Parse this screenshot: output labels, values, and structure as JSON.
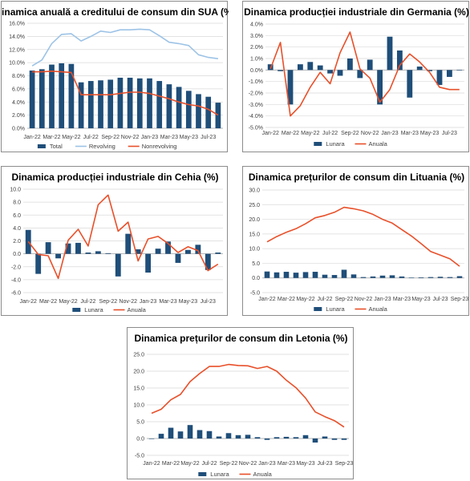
{
  "colors": {
    "bar": "#1f4e79",
    "line_red": "#e8502a",
    "line_blue": "#9dc3e6",
    "grid": "#d9d9d9",
    "axis": "#a6a6a6"
  },
  "chart_data": [
    {
      "id": "sua",
      "type": "bar",
      "title": "Dinamica anuală a creditului de consum din SUA (%)",
      "x_tick_labels": [
        "Jan-22",
        "Mar-22",
        "May-22",
        "Jul-22",
        "Sep-22",
        "Nov-22",
        "Jan-23",
        "Mar-23",
        "May-23",
        "Jul-23"
      ],
      "y_tick_labels": [
        "0.0%",
        "2.0%",
        "4.0%",
        "6.0%",
        "8.0%",
        "10.0%",
        "12.0%",
        "14.0%",
        "16.0%"
      ],
      "ylim": [
        0,
        16
      ],
      "grid": true,
      "legend_position": "bottom",
      "categories": [
        "Jan-22",
        "Feb-22",
        "Mar-22",
        "Apr-22",
        "May-22",
        "Jun-22",
        "Jul-22",
        "Aug-22",
        "Sep-22",
        "Oct-22",
        "Nov-22",
        "Dec-22",
        "Jan-23",
        "Feb-23",
        "Mar-23",
        "Apr-23",
        "May-23",
        "Jun-23",
        "Jul-23",
        "Aug-23"
      ],
      "series": [
        {
          "name": "Total",
          "kind": "bar",
          "values": [
            8.8,
            9.0,
            9.7,
            9.9,
            9.8,
            7.0,
            7.2,
            7.3,
            7.4,
            7.7,
            7.7,
            7.6,
            7.6,
            7.2,
            6.7,
            6.3,
            5.7,
            5.2,
            4.8,
            3.9
          ]
        },
        {
          "name": "Revolving",
          "kind": "line",
          "values": [
            9.5,
            10.4,
            12.9,
            14.3,
            14.4,
            13.3,
            14.0,
            14.8,
            14.6,
            15.0,
            15.0,
            15.1,
            15.0,
            14.1,
            13.1,
            12.9,
            12.6,
            11.2,
            10.8,
            10.6
          ]
        },
        {
          "name": "Nonrevolving",
          "kind": "line",
          "values": [
            8.6,
            8.6,
            8.7,
            8.6,
            8.5,
            5.1,
            5.1,
            5.1,
            5.1,
            5.3,
            5.5,
            5.5,
            5.3,
            4.9,
            4.5,
            4.0,
            3.6,
            3.4,
            2.9,
            2.0
          ]
        }
      ]
    },
    {
      "id": "germania",
      "type": "bar",
      "title": "Dinamica producției industriale din Germania (%)",
      "x_tick_labels": [
        "Jan-22",
        "Mar-22",
        "May-22",
        "Jul-22",
        "Sep-22",
        "Nov-22",
        "Jan-23",
        "Mar-23",
        "May-23",
        "Jul-23"
      ],
      "y_tick_labels": [
        "-5.0%",
        "-4.0%",
        "-3.0%",
        "-2.0%",
        "-1.0%",
        "0.0%",
        "1.0%",
        "2.0%",
        "3.0%",
        "4.0%"
      ],
      "ylim": [
        -5,
        4
      ],
      "grid": true,
      "legend_position": "bottom",
      "categories": [
        "Jan-22",
        "Feb-22",
        "Mar-22",
        "Apr-22",
        "May-22",
        "Jun-22",
        "Jul-22",
        "Aug-22",
        "Sep-22",
        "Oct-22",
        "Nov-22",
        "Dec-22",
        "Jan-23",
        "Feb-23",
        "Mar-23",
        "Apr-23",
        "May-23",
        "Jun-23",
        "Jul-23",
        "Aug-23"
      ],
      "series": [
        {
          "name": "Lunara",
          "kind": "bar",
          "values": [
            0.5,
            -0.1,
            -3.0,
            0.5,
            0.7,
            0.4,
            -0.3,
            -0.5,
            1.0,
            -0.7,
            0.9,
            -3.0,
            2.9,
            1.7,
            -2.4,
            0.3,
            -0.1,
            -1.3,
            -0.6,
            0
          ]
        },
        {
          "name": "Anuala",
          "kind": "line",
          "values": [
            0.1,
            2.4,
            -4.0,
            -3.1,
            -1.5,
            -0.2,
            -1.2,
            1.5,
            3.3,
            0.1,
            -0.7,
            -2.8,
            -1.7,
            0.4,
            1.4,
            0.7,
            -0.2,
            -1.5,
            -1.7,
            -1.7
          ]
        }
      ]
    },
    {
      "id": "cehia",
      "type": "bar",
      "title": "Dinamica producției industriale din Cehia (%)",
      "x_tick_labels": [
        "Jan-22",
        "Mar-22",
        "May-22",
        "Jul-22",
        "Sep-22",
        "Nov-22",
        "Jan-23",
        "Mar-23",
        "May-23",
        "Jul-23"
      ],
      "y_tick_labels": [
        "-6.0",
        "-4.0",
        "-2.0",
        "0.0",
        "2.0",
        "4.0",
        "6.0",
        "8.0",
        "10.0"
      ],
      "ylim": [
        -6,
        10
      ],
      "grid": true,
      "legend_position": "bottom",
      "categories": [
        "Jan-22",
        "Feb-22",
        "Mar-22",
        "Apr-22",
        "May-22",
        "Jun-22",
        "Jul-22",
        "Aug-22",
        "Sep-22",
        "Oct-22",
        "Nov-22",
        "Dec-22",
        "Jan-23",
        "Feb-23",
        "Mar-23",
        "Apr-23",
        "May-23",
        "Jun-23",
        "Jul-23",
        "Aug-23"
      ],
      "series": [
        {
          "name": "Lunara",
          "kind": "bar",
          "values": [
            3.7,
            -3.1,
            1.8,
            -0.7,
            1.6,
            1.7,
            0.2,
            0.4,
            0.1,
            -3.5,
            3.1,
            0.7,
            -2.9,
            0.8,
            1.9,
            -1.4,
            0.6,
            1.4,
            -2.5,
            0.2
          ]
        },
        {
          "name": "Anuala",
          "kind": "line",
          "values": [
            1.9,
            -0.1,
            -0.3,
            -3.8,
            2.1,
            3.8,
            1.2,
            7.6,
            9.1,
            3.5,
            4.9,
            -1.1,
            2.3,
            2.7,
            1.6,
            0.2,
            1.1,
            0.5,
            -2.6,
            -1.6
          ]
        }
      ]
    },
    {
      "id": "lituania",
      "type": "bar",
      "title": "Dinamica prețurilor de consum din Lituania (%)",
      "x_tick_labels": [
        "Jan-22",
        "Mar-22",
        "May-22",
        "Jul-22",
        "Sep-22",
        "Nov-22",
        "Jan-23",
        "Mar-23",
        "May-23",
        "Jul-23",
        "Sep-23"
      ],
      "y_tick_labels": [
        "-5.0",
        "0.0",
        "5.0",
        "10.0",
        "15.0",
        "20.0",
        "25.0",
        "30.0"
      ],
      "ylim": [
        -5,
        30
      ],
      "grid": true,
      "legend_position": "bottom",
      "categories": [
        "Jan-22",
        "Feb-22",
        "Mar-22",
        "Apr-22",
        "May-22",
        "Jun-22",
        "Jul-22",
        "Aug-22",
        "Sep-22",
        "Oct-22",
        "Nov-22",
        "Dec-22",
        "Jan-23",
        "Feb-23",
        "Mar-23",
        "Apr-23",
        "May-23",
        "Jun-23",
        "Jul-23",
        "Aug-23",
        "Sep-23"
      ],
      "series": [
        {
          "name": "Lunara",
          "kind": "bar",
          "values": [
            2.2,
            1.9,
            2.1,
            1.8,
            2.0,
            2.1,
            1.1,
            1.0,
            2.8,
            1.2,
            0.3,
            0.5,
            0.8,
            0.9,
            0.5,
            0.1,
            0.2,
            0.3,
            0.4,
            0.3,
            0.6
          ]
        },
        {
          "name": "Anuala",
          "kind": "line",
          "values": [
            12.3,
            14.1,
            15.6,
            16.8,
            18.5,
            20.5,
            21.3,
            22.4,
            24.1,
            23.6,
            22.9,
            21.7,
            20.0,
            18.7,
            16.5,
            14.3,
            11.7,
            9.0,
            7.8,
            6.5,
            4.0
          ]
        }
      ]
    },
    {
      "id": "letonia",
      "type": "bar",
      "title": "Dinamica prețurilor de consum din Letonia (%)",
      "x_tick_labels": [
        "Jan-22",
        "Mar-22",
        "May-22",
        "Jul-22",
        "Sep-22",
        "Nov-22",
        "Jan-23",
        "Mar-23",
        "May-23",
        "Jul-23",
        "Sep-23"
      ],
      "y_tick_labels": [
        "-5.0",
        "0.0",
        "5.0",
        "10.0",
        "15.0",
        "20.0",
        "25.0"
      ],
      "ylim": [
        -5,
        25
      ],
      "grid": true,
      "legend_position": "bottom",
      "categories": [
        "Jan-22",
        "Feb-22",
        "Mar-22",
        "Apr-22",
        "May-22",
        "Jun-22",
        "Jul-22",
        "Aug-22",
        "Sep-22",
        "Oct-22",
        "Nov-22",
        "Dec-22",
        "Jan-23",
        "Feb-23",
        "Mar-23",
        "Apr-23",
        "May-23",
        "Jun-23",
        "Jul-23",
        "Aug-23",
        "Sep-23"
      ],
      "series": [
        {
          "name": "Lunara",
          "kind": "bar",
          "values": [
            0,
            1.4,
            3.2,
            2.1,
            4.0,
            2.5,
            2.2,
            0.6,
            1.6,
            1.0,
            1.1,
            0.4,
            -0.4,
            0.4,
            0.5,
            0.4,
            1.0,
            -1.2,
            0.6,
            -0.4,
            -0.4
          ]
        },
        {
          "name": "Anuala",
          "kind": "line",
          "values": [
            7.5,
            8.7,
            11.5,
            13.1,
            16.9,
            19.3,
            21.4,
            21.4,
            22.0,
            21.7,
            21.6,
            20.8,
            21.4,
            20.0,
            17.3,
            15.1,
            12.0,
            7.9,
            6.5,
            5.3,
            3.4
          ]
        }
      ]
    }
  ]
}
